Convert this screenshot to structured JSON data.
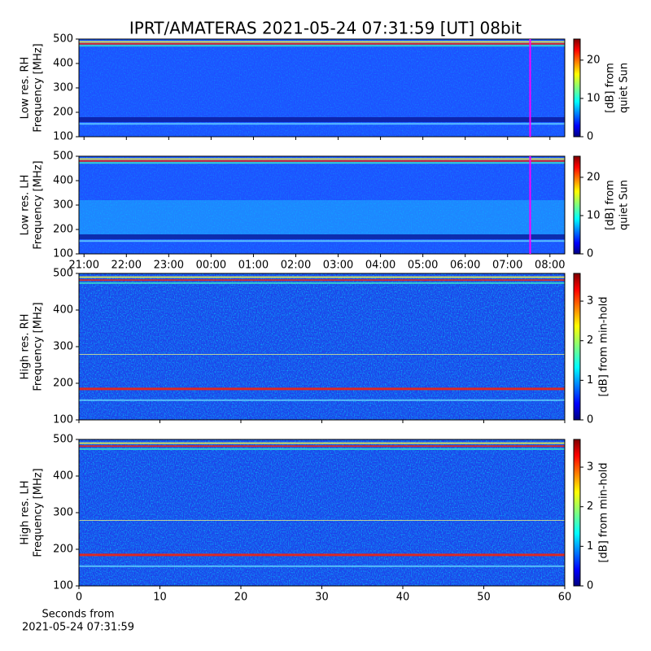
{
  "chart_data": [
    {
      "type": "heatmap",
      "title": "IPRT/AMATERAS 2021-05-24 07:31:59 [UT]   08bit",
      "ylabel": [
        "Low res. RH",
        "Frequency [MHz]"
      ],
      "ylim": [
        100,
        500
      ],
      "yticks": [
        100,
        200,
        300,
        400,
        500
      ],
      "xlim": [
        20.88,
        32.35
      ],
      "xticks": [
        21,
        22,
        23,
        24,
        25,
        26,
        27,
        28,
        29,
        30,
        31,
        32
      ],
      "show_xticklabels": false,
      "marker_x": 31.533,
      "marker_color": "#ff00ff",
      "colorbar": {
        "label": [
          "[dB] from",
          "quiet Sun"
        ],
        "lim": [
          0,
          25.5
        ],
        "ticks": [
          0,
          10,
          20
        ]
      }
    },
    {
      "type": "heatmap",
      "ylabel": [
        "Low res. LH",
        "Frequency [MHz]"
      ],
      "ylim": [
        100,
        500
      ],
      "yticks": [
        100,
        200,
        300,
        400,
        500
      ],
      "xlim": [
        20.88,
        32.35
      ],
      "xticks": [
        {
          "value": 21,
          "label": "21:00"
        },
        {
          "value": 22,
          "label": "22:00"
        },
        {
          "value": 23,
          "label": "23:00"
        },
        {
          "value": 24,
          "label": "00:00"
        },
        {
          "value": 25,
          "label": "01:00"
        },
        {
          "value": 26,
          "label": "02:00"
        },
        {
          "value": 27,
          "label": "03:00"
        },
        {
          "value": 28,
          "label": "04:00"
        },
        {
          "value": 29,
          "label": "05:00"
        },
        {
          "value": 30,
          "label": "06:00"
        },
        {
          "value": 31,
          "label": "07:00"
        },
        {
          "value": 32,
          "label": "08:00"
        }
      ],
      "show_xticklabels": true,
      "marker_x": 31.533,
      "marker_color": "#ff00ff",
      "colorbar": {
        "label": [
          "[dB] from",
          "quiet Sun"
        ],
        "lim": [
          0,
          25.5
        ],
        "ticks": [
          0,
          10,
          20
        ]
      }
    },
    {
      "type": "heatmap",
      "ylabel": [
        "High res. RH",
        "Frequency [MHz]"
      ],
      "ylim": [
        100,
        500
      ],
      "yticks": [
        100,
        200,
        300,
        400,
        500
      ],
      "xlim": [
        0,
        60
      ],
      "xticks": [
        0,
        10,
        20,
        30,
        40,
        50,
        60
      ],
      "show_xticklabels": false,
      "colorbar": {
        "label": [
          "[dB] from min-hold"
        ],
        "lim": [
          0,
          3.7
        ],
        "ticks": [
          0,
          1,
          2,
          3
        ]
      }
    },
    {
      "type": "heatmap",
      "ylabel": [
        "High res. LH",
        "Frequency [MHz]"
      ],
      "ylim": [
        100,
        500
      ],
      "yticks": [
        100,
        200,
        300,
        400,
        500
      ],
      "xlim": [
        0,
        60
      ],
      "xticks": [
        0,
        10,
        20,
        30,
        40,
        50,
        60
      ],
      "show_xticklabels": true,
      "xlabel": [
        "Seconds from",
        "2021-05-24 07:31:59"
      ],
      "colorbar": {
        "label": [
          "[dB] from min-hold"
        ],
        "lim": [
          0,
          3.7
        ],
        "ticks": [
          0,
          1,
          2,
          3
        ]
      }
    }
  ]
}
